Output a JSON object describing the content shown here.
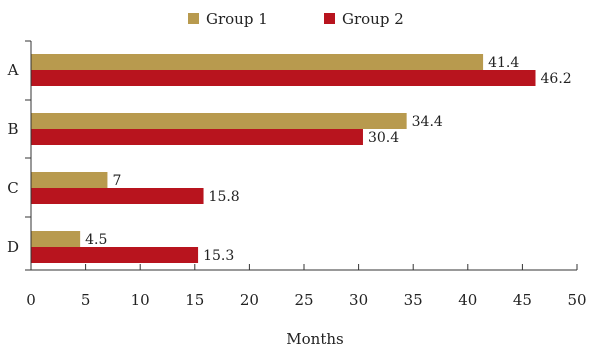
{
  "chart_data": {
    "type": "bar",
    "orientation": "horizontal",
    "categories": [
      "A",
      "B",
      "C",
      "D"
    ],
    "series": [
      {
        "name": "Group 1",
        "values": [
          41.4,
          34.4,
          7,
          4.5
        ],
        "color": "#B89A4E"
      },
      {
        "name": "Group 2",
        "values": [
          46.2,
          30.4,
          15.8,
          15.3
        ],
        "color": "#B8141E"
      }
    ],
    "data_labels": [
      [
        "41.4",
        "46.2"
      ],
      [
        "34.4",
        "30.4"
      ],
      [
        "7",
        "15.8"
      ],
      [
        "4.5",
        "15.3"
      ]
    ],
    "xlabel": "Months",
    "xlim": [
      0,
      50
    ],
    "xticks": [
      "0",
      "5",
      "10",
      "15",
      "20",
      "25",
      "30",
      "35",
      "40",
      "45",
      "50"
    ],
    "grid": false,
    "legend_position": "top-center"
  }
}
